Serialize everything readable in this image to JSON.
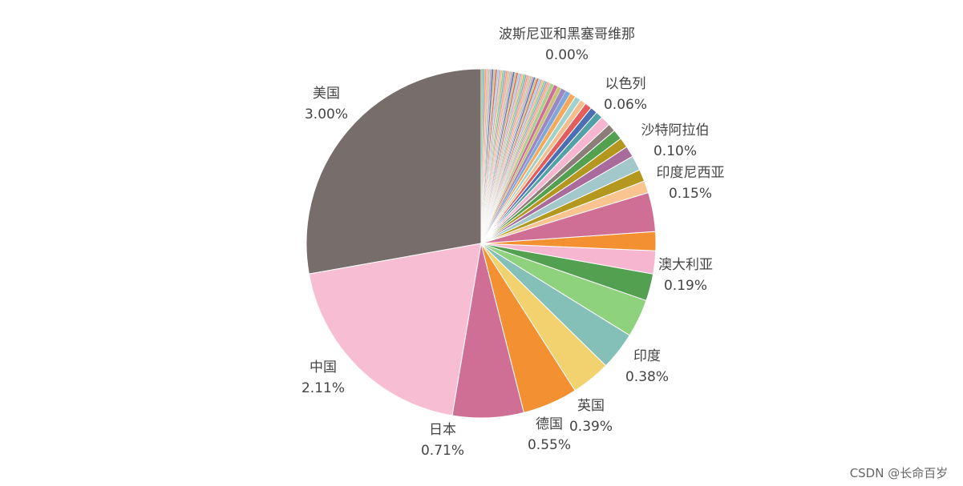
{
  "chart_data": {
    "type": "pie",
    "palette": [
      "#f4a3bb",
      "#f5a05a",
      "#7fa7d7",
      "#8fc980",
      "#f7b883",
      "#b6a6d3",
      "#9fd2cc",
      "#e45d5d",
      "#c8c277",
      "#4c6fb2",
      "#cd9bc5",
      "#a8d18d"
    ],
    "slices": [
      {
        "name": "美国",
        "value": 3.0,
        "pct_label": "3.00%",
        "color": "#776d6a"
      },
      {
        "name": "中国",
        "value": 2.11,
        "pct_label": "2.11%",
        "color": "#f7bdd3"
      },
      {
        "name": "日本",
        "value": 0.71,
        "pct_label": "0.71%",
        "color": "#d06f95"
      },
      {
        "name": "德国",
        "value": 0.55,
        "pct_label": "0.55%",
        "color": "#f39132"
      },
      {
        "name": "英国",
        "value": 0.39,
        "pct_label": "0.39%",
        "color": "#f2d16f"
      },
      {
        "name": "",
        "value": 0.38,
        "color": "#84bfb8"
      },
      {
        "name": "印度",
        "value": 0.38,
        "pct_label": "0.38%",
        "color": "#8fd27e"
      },
      {
        "name": "",
        "value": 0.27,
        "color": "#52a050"
      },
      {
        "name": "",
        "value": 0.23,
        "color": "#f7b6cf"
      },
      {
        "name": "澳大利亚",
        "value": 0.19,
        "pct_label": "0.19%",
        "color": "#f39132"
      },
      {
        "name": "",
        "value": 0.39,
        "color": "#d06f95"
      },
      {
        "name": "",
        "value": 0.12,
        "color": "#f9c48f"
      },
      {
        "name": "",
        "value": 0.12,
        "color": "#b3971e"
      },
      {
        "name": "印度尼西亚",
        "value": 0.15,
        "pct_label": "0.15%",
        "color": "#a2c8cc"
      },
      {
        "name": "",
        "value": 0.11,
        "color": "#a96a9c"
      },
      {
        "name": "",
        "value": 0.1,
        "color": "#b3971e"
      },
      {
        "name": "",
        "value": 0.1,
        "color": "#52a050"
      },
      {
        "name": "",
        "value": 0.08,
        "color": "#8d7d78"
      },
      {
        "name": "沙特阿拉伯",
        "value": 0.1,
        "pct_label": "0.10%",
        "color": "#f7b6cf"
      },
      {
        "name": "",
        "value": 0.07,
        "color": "#52a0a8"
      },
      {
        "name": "",
        "value": 0.07,
        "color": "#4c6fb2"
      },
      {
        "name": "",
        "value": 0.07,
        "color": "#e45d5d"
      },
      {
        "name": "",
        "value": 0.06,
        "color": "#f4bd8c"
      },
      {
        "name": "",
        "value": 0.06,
        "color": "#9fd2cc"
      },
      {
        "name": "以色列",
        "value": 0.06,
        "pct_label": "0.06%",
        "color": "#f5a95c"
      },
      {
        "name": "",
        "value": 0.05,
        "color": "#7fa7d7"
      },
      {
        "name": "",
        "value": 0.05,
        "color": "#9a88c4"
      },
      {
        "name": "",
        "value": 0.04,
        "color": "#c8c277"
      },
      {
        "name": "",
        "value": 0.04,
        "color": "#d06f95"
      },
      {
        "name": "",
        "value": 0.04,
        "color": "#a8d18d"
      }
    ],
    "tail_count": 40,
    "tail_value_each": 0.0175,
    "extra_label": {
      "name": "波斯尼亚和黑塞哥维那",
      "pct_label": "0.00%"
    }
  },
  "watermark": "CSDN @长命百岁 ︎"
}
